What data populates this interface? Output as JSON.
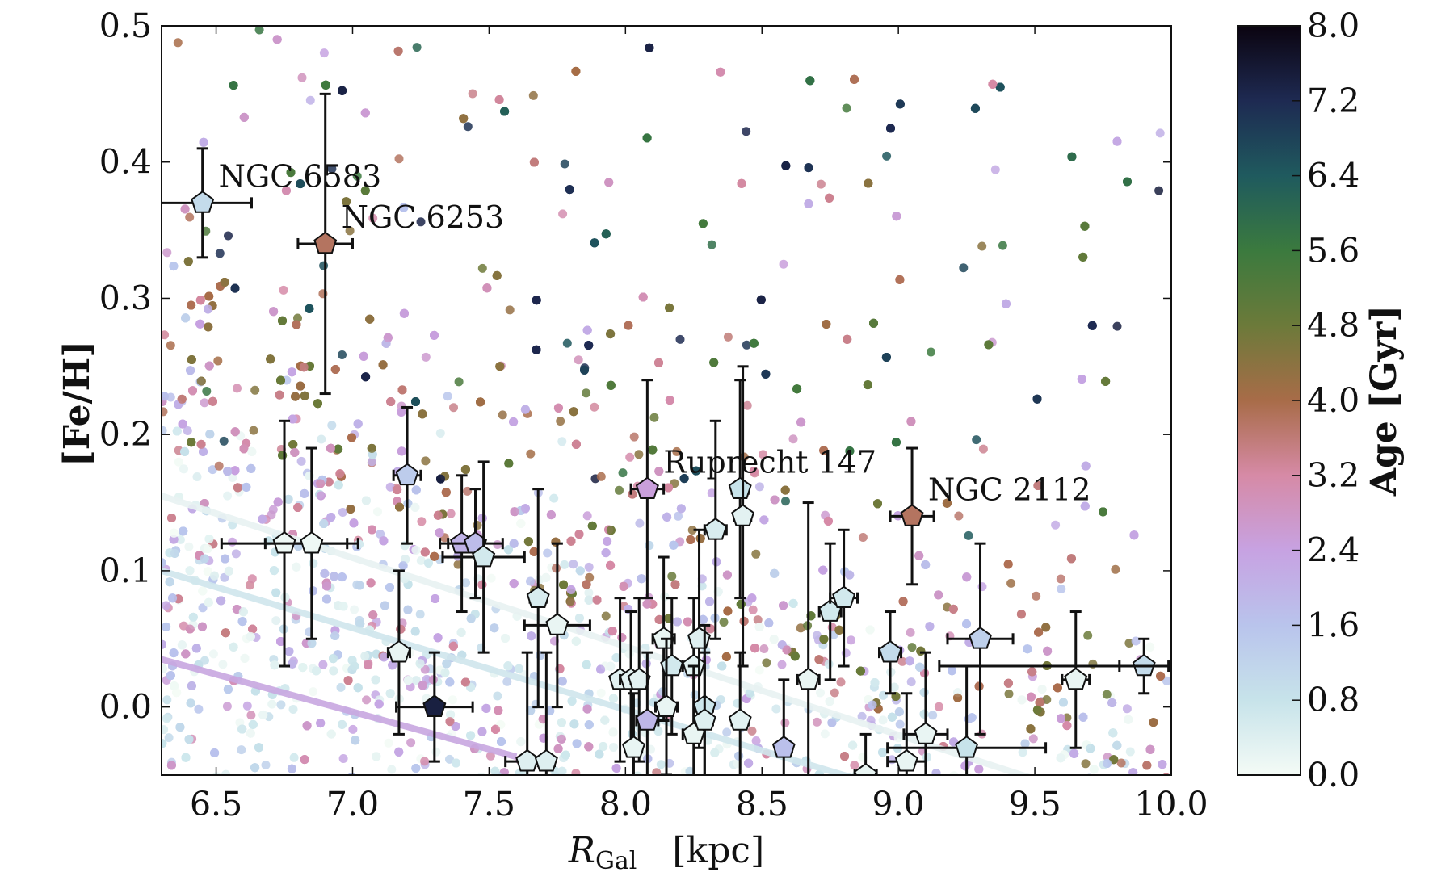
{
  "chart_data": {
    "type": "scatter",
    "title": "",
    "xlabel": "R_Gal   [kpc]",
    "xlabel_main": "R",
    "xlabel_sub": "Gal",
    "xlabel_unit": "[kpc]",
    "ylabel": "[Fe/H]",
    "xlim": [
      6.3,
      10.0
    ],
    "ylim": [
      -0.05,
      0.5
    ],
    "xticks": [
      6.5,
      7.0,
      7.5,
      8.0,
      8.5,
      9.0,
      9.5,
      10.0
    ],
    "xtick_labels": [
      "6.5",
      "7.0",
      "7.5",
      "8.0",
      "8.5",
      "9.0",
      "9.5",
      "10.0"
    ],
    "yticks": [
      0.0,
      0.1,
      0.2,
      0.3,
      0.4,
      0.5
    ],
    "ytick_labels": [
      "0.0",
      "0.1",
      "0.2",
      "0.3",
      "0.4",
      "0.5"
    ],
    "grid": false,
    "colorbar": {
      "label": "Age [Gyr]",
      "range": [
        0.0,
        8.0
      ],
      "ticks": [
        0.0,
        0.8,
        1.6,
        2.4,
        3.2,
        4.0,
        4.8,
        5.6,
        6.4,
        7.2,
        8.0
      ],
      "tick_labels": [
        "0.0",
        "0.8",
        "1.6",
        "2.4",
        "3.2",
        "4.0",
        "4.8",
        "5.6",
        "6.4",
        "7.2",
        "8.0"
      ],
      "colormap_stops": [
        {
          "age": 0.0,
          "color": "#f4fbf6"
        },
        {
          "age": 0.8,
          "color": "#c7e3ea"
        },
        {
          "age": 1.6,
          "color": "#b9c4ec"
        },
        {
          "age": 2.4,
          "color": "#c7a2e2"
        },
        {
          "age": 3.2,
          "color": "#d68aa6"
        },
        {
          "age": 4.0,
          "color": "#a86c48"
        },
        {
          "age": 4.8,
          "color": "#6c7a3a"
        },
        {
          "age": 5.6,
          "color": "#3b7a3e"
        },
        {
          "age": 6.4,
          "color": "#1f5a5e"
        },
        {
          "age": 7.2,
          "color": "#1e2a52"
        },
        {
          "age": 8.0,
          "color": "#0b0410"
        }
      ]
    },
    "background_stars": {
      "note_visible": "dense field of model stars colored by age",
      "count": 5200
    },
    "clusters": [
      {
        "label": "NGC 6583",
        "x": 6.45,
        "y": 0.37,
        "xerr": 0.18,
        "yerr": 0.04,
        "age": 1.0
      },
      {
        "label": "NGC 6253",
        "x": 6.9,
        "y": 0.34,
        "xerr": 0.1,
        "yerr": 0.11,
        "age": 3.8
      },
      {
        "label": "",
        "x": 6.75,
        "y": 0.12,
        "xerr": 0.23,
        "yerr": 0.09,
        "age": 0.1
      },
      {
        "label": "",
        "x": 6.85,
        "y": 0.12,
        "xerr": 0.17,
        "yerr": 0.07,
        "age": 0.1
      },
      {
        "label": "",
        "x": 7.2,
        "y": 0.17,
        "xerr": 0.05,
        "yerr": 0.05,
        "age": 1.4
      },
      {
        "label": "",
        "x": 7.17,
        "y": 0.04,
        "xerr": 0.04,
        "yerr": 0.06,
        "age": 0.2
      },
      {
        "label": "",
        "x": 7.3,
        "y": 0.0,
        "xerr": 0.14,
        "yerr": 0.04,
        "age": 7.4
      },
      {
        "label": "",
        "x": 7.4,
        "y": 0.12,
        "xerr": 0.08,
        "yerr": 0.05,
        "age": 2.0
      },
      {
        "label": "",
        "x": 7.45,
        "y": 0.12,
        "xerr": 0.1,
        "yerr": 0.04,
        "age": 1.8
      },
      {
        "label": "",
        "x": 7.48,
        "y": 0.11,
        "xerr": 0.15,
        "yerr": 0.07,
        "age": 0.6
      },
      {
        "label": "",
        "x": 7.68,
        "y": 0.08,
        "xerr": 0.03,
        "yerr": 0.08,
        "age": 0.5
      },
      {
        "label": "",
        "x": 7.75,
        "y": 0.06,
        "xerr": 0.12,
        "yerr": 0.06,
        "age": 0.2
      },
      {
        "label": "",
        "x": 7.64,
        "y": -0.04,
        "xerr": 0.08,
        "yerr": 0.08,
        "age": 0.4
      },
      {
        "label": "",
        "x": 7.71,
        "y": -0.04,
        "xerr": 0.03,
        "yerr": 0.08,
        "age": 0.4
      },
      {
        "label": "",
        "x": 7.98,
        "y": 0.02,
        "xerr": 0.03,
        "yerr": 0.06,
        "age": 0.3
      },
      {
        "label": "",
        "x": 8.02,
        "y": 0.02,
        "xerr": 0.04,
        "yerr": 0.05,
        "age": 0.3
      },
      {
        "label": "",
        "x": 8.05,
        "y": 0.02,
        "xerr": 0.03,
        "yerr": 0.06,
        "age": 0.3
      },
      {
        "label": "",
        "x": 8.03,
        "y": -0.03,
        "xerr": 0.03,
        "yerr": 0.04,
        "age": 0.2
      },
      {
        "label": "Ruprecht 147",
        "x": 8.08,
        "y": 0.16,
        "xerr": 0.06,
        "yerr": 0.08,
        "age": 2.5
      },
      {
        "label": "",
        "x": 8.08,
        "y": -0.01,
        "xerr": 0.04,
        "yerr": 0.05,
        "age": 1.9
      },
      {
        "label": "",
        "x": 8.14,
        "y": 0.05,
        "xerr": 0.04,
        "yerr": 0.06,
        "age": 0.2
      },
      {
        "label": "",
        "x": 8.17,
        "y": 0.03,
        "xerr": 0.03,
        "yerr": 0.05,
        "age": 0.6
      },
      {
        "label": "",
        "x": 8.15,
        "y": 0.0,
        "xerr": 0.04,
        "yerr": 0.05,
        "age": 0.2
      },
      {
        "label": "",
        "x": 8.25,
        "y": 0.03,
        "xerr": 0.04,
        "yerr": 0.05,
        "age": 0.3
      },
      {
        "label": "",
        "x": 8.27,
        "y": 0.05,
        "xerr": 0.03,
        "yerr": 0.08,
        "age": 0.4
      },
      {
        "label": "",
        "x": 8.25,
        "y": -0.02,
        "xerr": 0.04,
        "yerr": 0.05,
        "age": 0.2
      },
      {
        "label": "",
        "x": 8.29,
        "y": 0.0,
        "xerr": 0.03,
        "yerr": 0.06,
        "age": 0.7
      },
      {
        "label": "",
        "x": 8.29,
        "y": -0.01,
        "xerr": 0.03,
        "yerr": 0.05,
        "age": 0.4
      },
      {
        "label": "",
        "x": 8.33,
        "y": 0.13,
        "xerr": 0.04,
        "yerr": 0.08,
        "age": 0.5
      },
      {
        "label": "",
        "x": 8.42,
        "y": 0.16,
        "xerr": 0.03,
        "yerr": 0.08,
        "age": 0.8
      },
      {
        "label": "",
        "x": 8.43,
        "y": 0.14,
        "xerr": 0.03,
        "yerr": 0.11,
        "age": 0.3
      },
      {
        "label": "",
        "x": 8.42,
        "y": -0.01,
        "xerr": 0.03,
        "yerr": 0.05,
        "age": 0.3
      },
      {
        "label": "",
        "x": 8.58,
        "y": -0.03,
        "xerr": 0.03,
        "yerr": 0.05,
        "age": 1.7
      },
      {
        "label": "",
        "x": 8.67,
        "y": 0.02,
        "xerr": 0.04,
        "yerr": 0.13,
        "age": 0.2
      },
      {
        "label": "",
        "x": 8.75,
        "y": 0.07,
        "xerr": 0.04,
        "yerr": 0.05,
        "age": 0.6
      },
      {
        "label": "",
        "x": 8.8,
        "y": 0.08,
        "xerr": 0.05,
        "yerr": 0.05,
        "age": 0.6
      },
      {
        "label": "",
        "x": 8.88,
        "y": -0.05,
        "xerr": 0.04,
        "yerr": 0.03,
        "age": 0.2
      },
      {
        "label": "",
        "x": 8.97,
        "y": 0.04,
        "xerr": 0.04,
        "yerr": 0.03,
        "age": 1.0
      },
      {
        "label": "NGC 2112",
        "x": 9.05,
        "y": 0.14,
        "xerr": 0.08,
        "yerr": 0.05,
        "age": 3.8
      },
      {
        "label": "",
        "x": 9.03,
        "y": -0.04,
        "xerr": 0.07,
        "yerr": 0.05,
        "age": 0.2
      },
      {
        "label": "",
        "x": 9.1,
        "y": -0.02,
        "xerr": 0.08,
        "yerr": 0.06,
        "age": 0.2
      },
      {
        "label": "",
        "x": 9.25,
        "y": -0.03,
        "xerr": 0.29,
        "yerr": 0.06,
        "age": 0.8
      },
      {
        "label": "",
        "x": 9.3,
        "y": 0.05,
        "xerr": 0.12,
        "yerr": 0.07,
        "age": 1.3
      },
      {
        "label": "",
        "x": 9.65,
        "y": 0.02,
        "xerr": 0.05,
        "yerr": 0.05,
        "age": 0.2
      },
      {
        "label": "",
        "x": 9.9,
        "y": 0.03,
        "xerr": 0.09,
        "yerr": 0.02,
        "age": 1.0
      },
      {
        "label": "",
        "x": 9.6,
        "y": 0.03,
        "xerr": 0.45,
        "yerr": 0.0,
        "age": 0.9
      }
    ]
  }
}
